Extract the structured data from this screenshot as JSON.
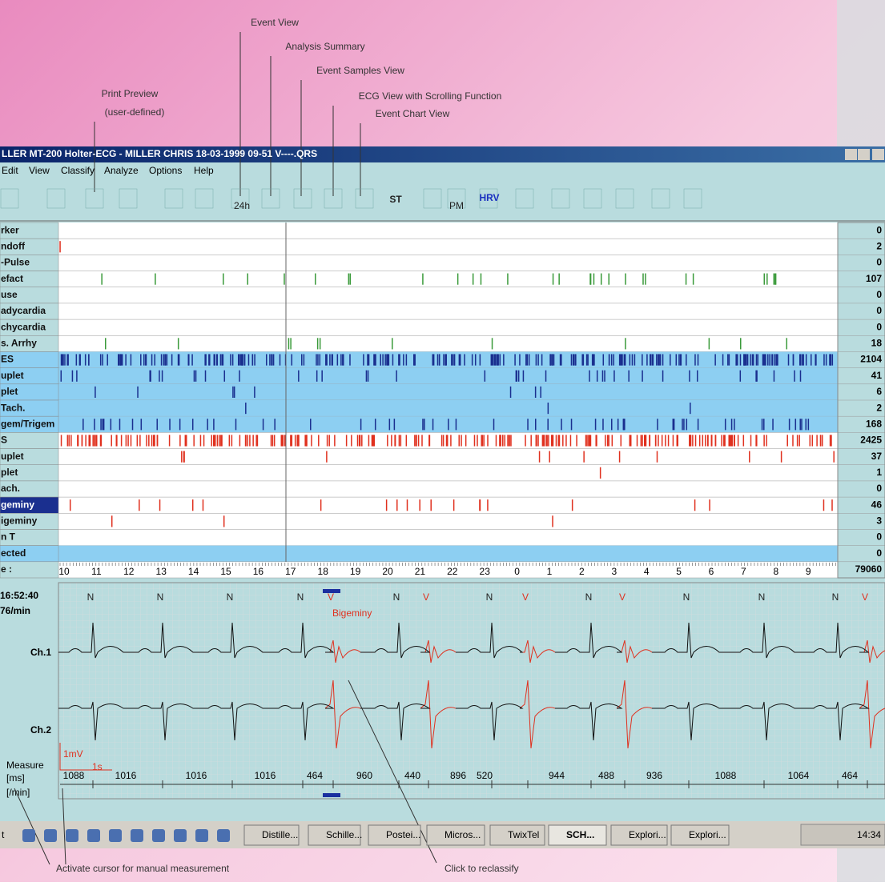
{
  "callouts": [
    "Event View",
    "Analysis Summary",
    "Event Samples View",
    "ECG View with Scrolling Function",
    "Event Chart View",
    "Print Preview",
    "(user-defined)"
  ],
  "window": {
    "title": "LLER MT-200 Holter-ECG - MILLER CHRIS 18-03-1999 09-51 V----.QRS",
    "menu": [
      "Edit",
      "View",
      "Classify",
      "Analyze",
      "Options",
      "Help"
    ],
    "toolbar": [
      "24h",
      "ST",
      "PM",
      "HRV"
    ]
  },
  "event_table": {
    "rows": [
      {
        "label": "rker",
        "count": 0
      },
      {
        "label": "ndoff",
        "count": 2
      },
      {
        "label": "-Pulse",
        "count": 0
      },
      {
        "label": "efact",
        "count": 107
      },
      {
        "label": "use",
        "count": 0
      },
      {
        "label": "adycardia",
        "count": 0
      },
      {
        "label": "chycardia",
        "count": 0
      },
      {
        "label": "s. Arrhy",
        "count": 18
      },
      {
        "label": "ES",
        "count": 2104
      },
      {
        "label": "uplet",
        "count": 41
      },
      {
        "label": "plet",
        "count": 6
      },
      {
        "label": "Tach.",
        "count": 2
      },
      {
        "label": "gem/Trigem",
        "count": 168
      },
      {
        "label": "S",
        "count": 2425
      },
      {
        "label": "uplet",
        "count": 37
      },
      {
        "label": "plet",
        "count": 1
      },
      {
        "label": "ach.",
        "count": 0
      },
      {
        "label": "geminy",
        "count": 46
      },
      {
        "label": "igeminy",
        "count": 3
      },
      {
        "label": "n T",
        "count": 0
      },
      {
        "label": "ected",
        "count": 0
      },
      {
        "label": "e :",
        "count": 79060
      }
    ],
    "time_axis": [
      "10",
      "11",
      "12",
      "13",
      "14",
      "15",
      "16",
      "17",
      "18",
      "19",
      "20",
      "21",
      "22",
      "23",
      "0",
      "1",
      "2",
      "3",
      "4",
      "5",
      "6",
      "7",
      "8",
      "9"
    ]
  },
  "ecg": {
    "time": "16:52:40",
    "rate": "76/min",
    "channels": [
      "Ch.1",
      "Ch.2"
    ],
    "beats": [
      "N",
      "N",
      "N",
      "N",
      "V",
      "N",
      "V",
      "N",
      "V",
      "N",
      "V",
      "N",
      "N",
      "N",
      "V"
    ],
    "annotation": "Bigeminy",
    "amplitude": "1mV",
    "duration": "1s",
    "rr_intervals": [
      1088,
      1016,
      1016,
      1016,
      464,
      960,
      440,
      896,
      520,
      944,
      488,
      936,
      1088,
      1064,
      464
    ],
    "measure": [
      "Measure",
      "[ms]",
      "[/min]"
    ]
  },
  "taskbar": {
    "start": "t",
    "items": [
      "Distille...",
      "Schille...",
      "Postei...",
      "Micros...",
      "TwixTel",
      "SCH...",
      "Explori...",
      "Explori..."
    ],
    "clock": "14:34"
  },
  "annotations": [
    "Activate cursor for manual measurement",
    "Click to reclassify"
  ]
}
